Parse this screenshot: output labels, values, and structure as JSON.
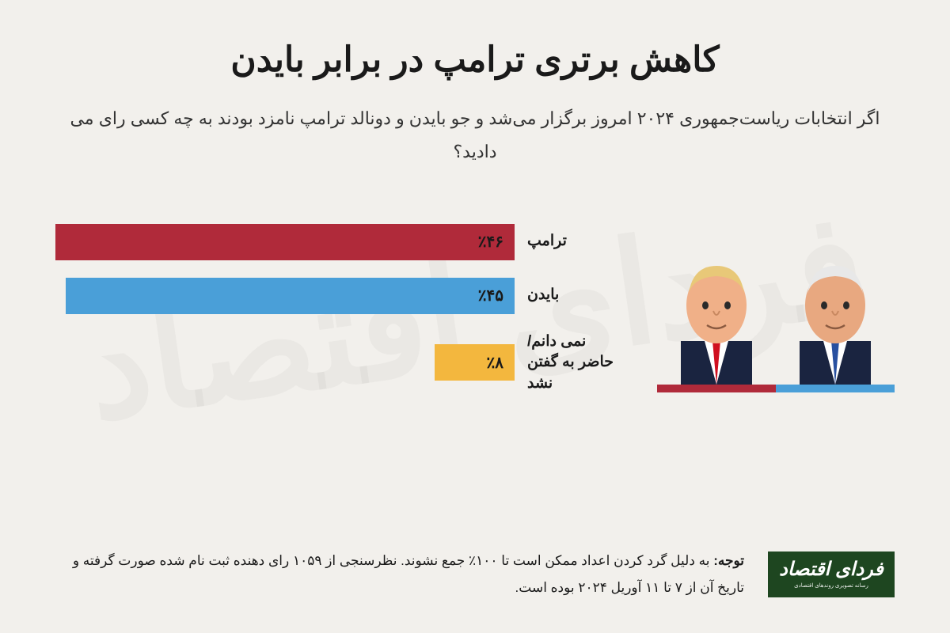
{
  "title": "کاهش برتری ترامپ در برابر بایدن",
  "subtitle": "اگر انتخابات ریاست‌جمهوری ۲۰۲۴ امروز برگزار می‌شد و جو بایدن و دونالد ترامپ نامزد بودند به چه کسی رای می دادید؟",
  "watermark": "فردای اقتصاد",
  "colors": {
    "background": "#f2f0ec",
    "trump": "#b02a3a",
    "biden": "#4a9fd8",
    "unknown": "#f3b73e",
    "text": "#1a1a1a"
  },
  "bars": [
    {
      "label": "ترامپ",
      "value_text": "٪۴۶",
      "percent": 46,
      "color": "#b02a3a"
    },
    {
      "label": "بایدن",
      "value_text": "٪۴۵",
      "percent": 45,
      "color": "#4a9fd8"
    },
    {
      "label": "نمی دانم/\nحاضر به گفتن نشد",
      "value_text": "٪۸",
      "percent": 8,
      "color": "#f3b73e"
    }
  ],
  "max_percent": 46,
  "photos": [
    {
      "name": "trump",
      "bar_color": "#b02a3a",
      "skin": "#f0b088",
      "hair": "#e8c878",
      "suit": "#1a2440",
      "tie": "#d01020"
    },
    {
      "name": "biden",
      "bar_color": "#4a9fd8",
      "skin": "#e8a880",
      "hair": "#e8e8e8",
      "suit": "#1a2440",
      "tie": "#2850a0"
    }
  ],
  "note_bold": "توجه:",
  "note_text": " به دلیل گرد کردن اعداد ممکن است تا ۱۰۰٪ جمع نشوند. نظرسنجی از ۱۰۵۹ رای دهنده ثبت نام شده صورت گرفته و تاریخ آن از ۷ تا ۱۱ آوریل ۲۰۲۴ بوده است.",
  "logo_main": "فردای اقتصاد",
  "logo_sub": "رسانه تصویری روندهای اقتصادی"
}
